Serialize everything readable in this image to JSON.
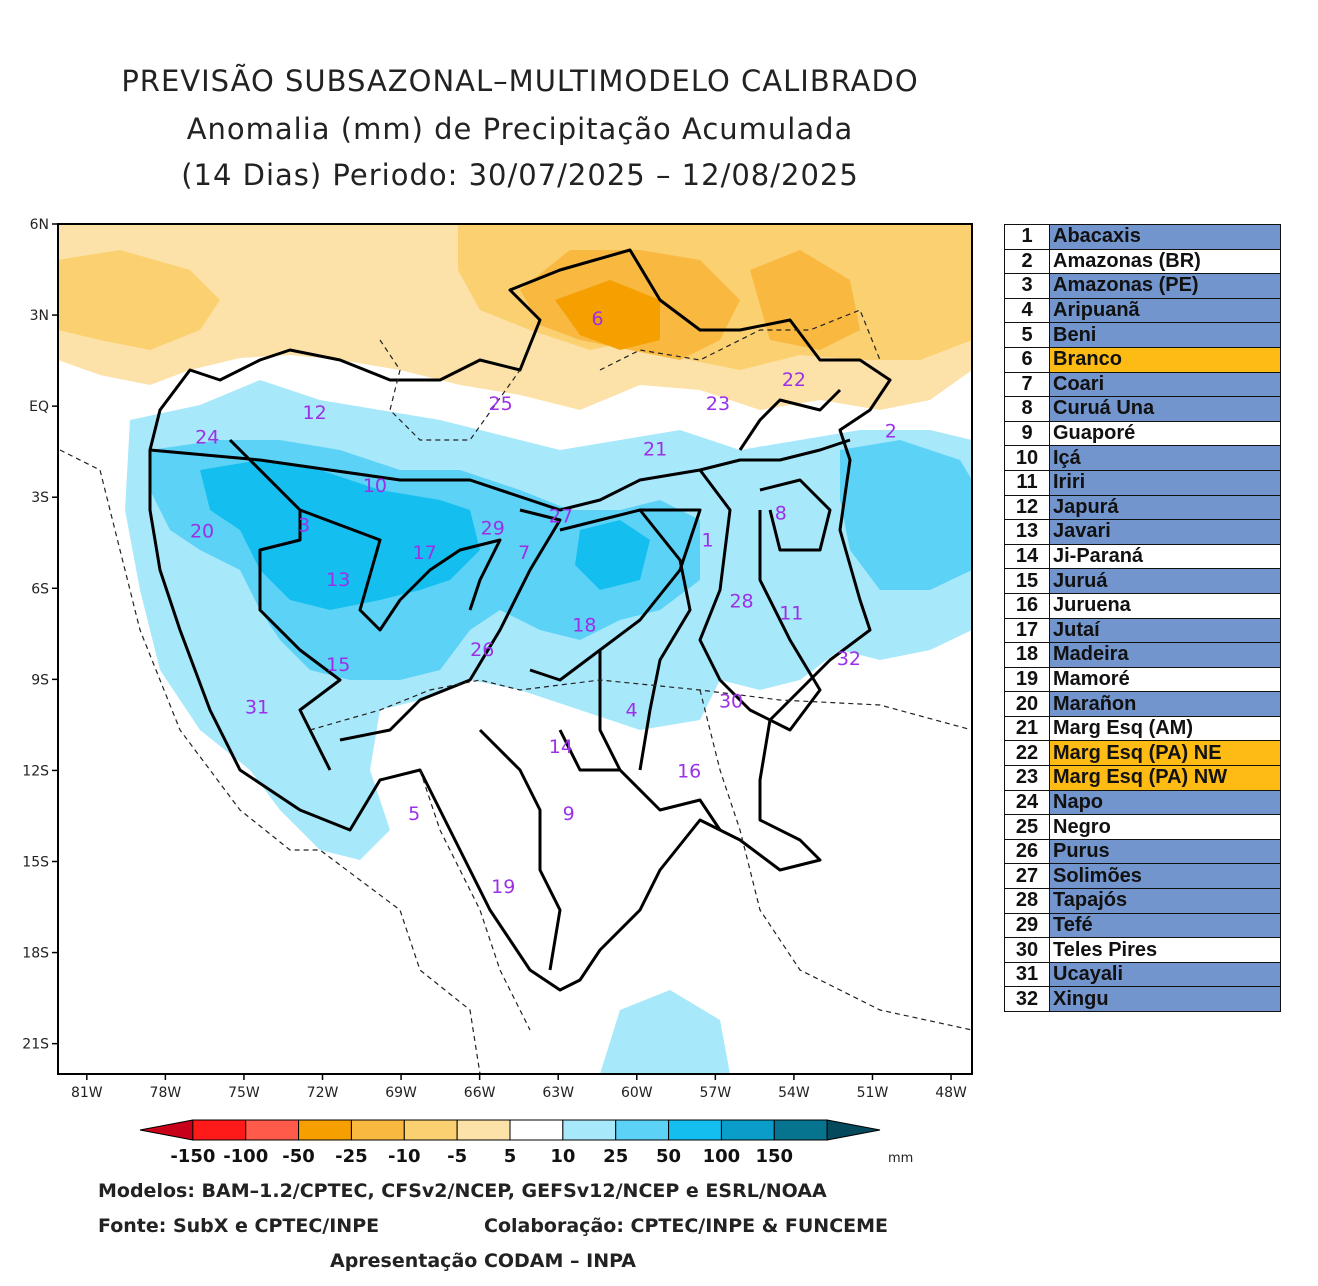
{
  "titles": {
    "line1": "PREVISÃO SUBSAZONAL–MULTIMODELO CALIBRADO",
    "line2": "Anomalia (mm) de Precipitação Acumulada",
    "line3": "(14 Dias) Periodo: 30/07/2025 – 12/08/2025"
  },
  "axes": {
    "lat_labels": [
      "6N",
      "3N",
      "EQ",
      "3S",
      "6S",
      "9S",
      "12S",
      "15S",
      "18S",
      "21S"
    ],
    "lon_labels": [
      "81W",
      "78W",
      "75W",
      "72W",
      "69W",
      "66W",
      "63W",
      "60W",
      "57W",
      "54W",
      "51W",
      "48W"
    ]
  },
  "colorbar": {
    "labels": [
      "-150",
      "-100",
      "-50",
      "-25",
      "-10",
      "-5",
      "5",
      "10",
      "25",
      "50",
      "100",
      "150"
    ],
    "unit": "mm",
    "colors": [
      "#c8001a",
      "#ff1a1a",
      "#ff5a4a",
      "#f5a000",
      "#f9b840",
      "#fbd070",
      "#fce2a8",
      "#ffffff",
      "#a8e8fb",
      "#5cd2f6",
      "#14bff0",
      "#0a9dc9",
      "#06738f",
      "#044a5c"
    ]
  },
  "basin_labels": [
    {
      "id": "1",
      "lon": -57.3,
      "lat": -4.4
    },
    {
      "id": "2",
      "lon": -50.3,
      "lat": -0.8
    },
    {
      "id": "3",
      "lon": -72.7,
      "lat": -3.9
    },
    {
      "id": "4",
      "lon": -60.2,
      "lat": -10.0
    },
    {
      "id": "5",
      "lon": -68.5,
      "lat": -13.4
    },
    {
      "id": "6",
      "lon": -61.5,
      "lat": 2.9
    },
    {
      "id": "7",
      "lon": -64.3,
      "lat": -4.8
    },
    {
      "id": "8",
      "lon": -54.5,
      "lat": -3.5
    },
    {
      "id": "9",
      "lon": -62.6,
      "lat": -13.4
    },
    {
      "id": "10",
      "lon": -70.0,
      "lat": -2.6
    },
    {
      "id": "11",
      "lon": -54.1,
      "lat": -6.8
    },
    {
      "id": "12",
      "lon": -72.3,
      "lat": -0.2
    },
    {
      "id": "13",
      "lon": -71.4,
      "lat": -5.7
    },
    {
      "id": "14",
      "lon": -62.9,
      "lat": -11.2
    },
    {
      "id": "15",
      "lon": -71.4,
      "lat": -8.5
    },
    {
      "id": "16",
      "lon": -58.0,
      "lat": -12.0
    },
    {
      "id": "17",
      "lon": -68.1,
      "lat": -4.8
    },
    {
      "id": "18",
      "lon": -62.0,
      "lat": -7.2
    },
    {
      "id": "19",
      "lon": -65.1,
      "lat": -15.8
    },
    {
      "id": "20",
      "lon": -76.6,
      "lat": -4.1
    },
    {
      "id": "21",
      "lon": -59.3,
      "lat": -1.4
    },
    {
      "id": "22",
      "lon": -54.0,
      "lat": 0.9
    },
    {
      "id": "23",
      "lon": -56.9,
      "lat": 0.1
    },
    {
      "id": "24",
      "lon": -76.4,
      "lat": -1.0
    },
    {
      "id": "25",
      "lon": -65.2,
      "lat": 0.1
    },
    {
      "id": "26",
      "lon": -65.9,
      "lat": -8.0
    },
    {
      "id": "27",
      "lon": -62.9,
      "lat": -3.6
    },
    {
      "id": "28",
      "lon": -56.0,
      "lat": -6.4
    },
    {
      "id": "29",
      "lon": -65.5,
      "lat": -4.0
    },
    {
      "id": "30",
      "lon": -56.4,
      "lat": -9.7
    },
    {
      "id": "31",
      "lon": -74.5,
      "lat": -9.9
    },
    {
      "id": "32",
      "lon": -51.9,
      "lat": -8.3
    }
  ],
  "legend": [
    {
      "num": "1",
      "name": "Abacaxis",
      "color": "#7395cd"
    },
    {
      "num": "2",
      "name": "Amazonas (BR)",
      "color": "#ffffff"
    },
    {
      "num": "3",
      "name": "Amazonas (PE)",
      "color": "#7395cd"
    },
    {
      "num": "4",
      "name": "Aripuanã",
      "color": "#7395cd"
    },
    {
      "num": "5",
      "name": "Beni",
      "color": "#7395cd"
    },
    {
      "num": "6",
      "name": "Branco",
      "color": "#fdbb14"
    },
    {
      "num": "7",
      "name": "Coari",
      "color": "#7395cd"
    },
    {
      "num": "8",
      "name": "Curuá Una",
      "color": "#7395cd"
    },
    {
      "num": "9",
      "name": "Guaporé",
      "color": "#ffffff"
    },
    {
      "num": "10",
      "name": "Içá",
      "color": "#7395cd"
    },
    {
      "num": "11",
      "name": "Iriri",
      "color": "#7395cd"
    },
    {
      "num": "12",
      "name": "Japurá",
      "color": "#7395cd"
    },
    {
      "num": "13",
      "name": "Javari",
      "color": "#7395cd"
    },
    {
      "num": "14",
      "name": "Ji-Paraná",
      "color": "#ffffff"
    },
    {
      "num": "15",
      "name": "Juruá",
      "color": "#7395cd"
    },
    {
      "num": "16",
      "name": "Juruena",
      "color": "#ffffff"
    },
    {
      "num": "17",
      "name": "Jutaí",
      "color": "#7395cd"
    },
    {
      "num": "18",
      "name": "Madeira",
      "color": "#7395cd"
    },
    {
      "num": "19",
      "name": "Mamoré",
      "color": "#ffffff"
    },
    {
      "num": "20",
      "name": "Marañon",
      "color": "#7395cd"
    },
    {
      "num": "21",
      "name": "Marg Esq (AM)",
      "color": "#ffffff"
    },
    {
      "num": "22",
      "name": "Marg Esq (PA) NE",
      "color": "#fdbb14"
    },
    {
      "num": "23",
      "name": "Marg Esq (PA) NW",
      "color": "#fdbb14"
    },
    {
      "num": "24",
      "name": "Napo",
      "color": "#7395cd"
    },
    {
      "num": "25",
      "name": "Negro",
      "color": "#ffffff"
    },
    {
      "num": "26",
      "name": "Purus",
      "color": "#7395cd"
    },
    {
      "num": "27",
      "name": "Solimões",
      "color": "#7395cd"
    },
    {
      "num": "28",
      "name": "Tapajós",
      "color": "#7395cd"
    },
    {
      "num": "29",
      "name": "Tefé",
      "color": "#7395cd"
    },
    {
      "num": "30",
      "name": "Teles Pires",
      "color": "#ffffff"
    },
    {
      "num": "31",
      "name": "Ucayali",
      "color": "#7395cd"
    },
    {
      "num": "32",
      "name": "Xingu",
      "color": "#7395cd"
    }
  ],
  "footer": {
    "models": "Modelos: BAM–1.2/CPTEC, CFSv2/NCEP, GEFSv12/NCEP e ESRL/NOAA",
    "source": "Fonte: SubX e CPTEC/INPE",
    "collab": "Colaboração: CPTEC/INPE & FUNCEME",
    "presentation": "Apresentação CODAM – INPA"
  }
}
